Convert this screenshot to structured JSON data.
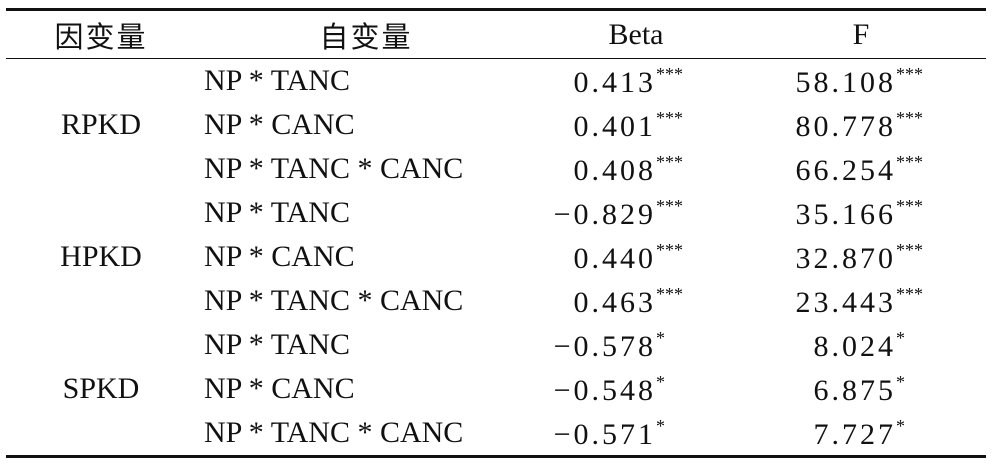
{
  "table": {
    "header": [
      "因变量",
      "自变量",
      "Beta",
      "F"
    ],
    "groups": [
      {
        "dependent": "RPKD",
        "rows": [
          {
            "independent": "NP * TANC",
            "beta": "0.413",
            "beta_sig": "***",
            "f": "58.108",
            "f_sig": "***"
          },
          {
            "independent": "NP * CANC",
            "beta": "0.401",
            "beta_sig": "***",
            "f": "80.778",
            "f_sig": "***"
          },
          {
            "independent": "NP * TANC * CANC",
            "beta": "0.408",
            "beta_sig": "***",
            "f": "66.254",
            "f_sig": "***"
          }
        ]
      },
      {
        "dependent": "HPKD",
        "rows": [
          {
            "independent": "NP * TANC",
            "beta": "−0.829",
            "beta_sig": "***",
            "f": "35.166",
            "f_sig": "***"
          },
          {
            "independent": "NP * CANC",
            "beta": "0.440",
            "beta_sig": "***",
            "f": "32.870",
            "f_sig": "***"
          },
          {
            "independent": "NP * TANC * CANC",
            "beta": "0.463",
            "beta_sig": "***",
            "f": "23.443",
            "f_sig": "***"
          }
        ]
      },
      {
        "dependent": "SPKD",
        "rows": [
          {
            "independent": "NP * TANC",
            "beta": "−0.578",
            "beta_sig": "*",
            "f": "8.024",
            "f_sig": "*"
          },
          {
            "independent": "NP * CANC",
            "beta": "−0.548",
            "beta_sig": "*",
            "f": "6.875",
            "f_sig": "*"
          },
          {
            "independent": "NP * TANC * CANC",
            "beta": "−0.571",
            "beta_sig": "*",
            "f": "7.727",
            "f_sig": "*"
          }
        ]
      }
    ]
  }
}
